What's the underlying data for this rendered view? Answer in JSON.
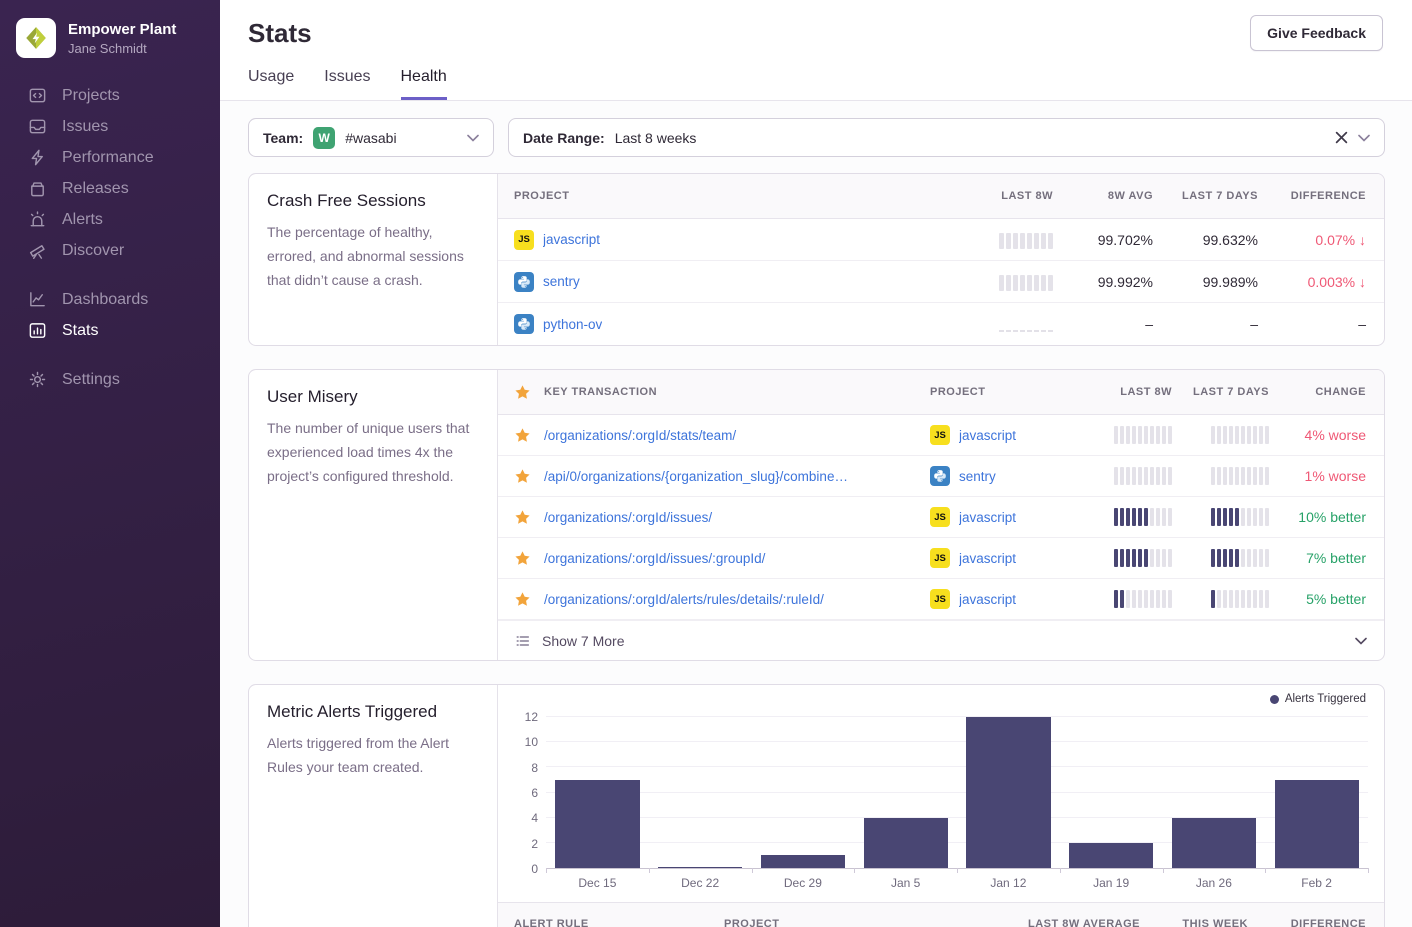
{
  "colors": {
    "accent": "#6C5FC7",
    "link": "#3D74DB",
    "red": "#EF5875",
    "green": "#27A268",
    "bar_dark": "#494673",
    "bar_light": "#E4E2E9",
    "star": "#F2A43B",
    "js_yellow": "#F7DF1E",
    "python_blue": "#3B82C4",
    "team_green": "#3FA372"
  },
  "sidebar": {
    "org_name": "Empower Plant",
    "user_name": "Jane Schmidt",
    "nav_groups": [
      [
        {
          "id": "projects",
          "label": "Projects"
        },
        {
          "id": "issues",
          "label": "Issues"
        },
        {
          "id": "performance",
          "label": "Performance"
        },
        {
          "id": "releases",
          "label": "Releases"
        },
        {
          "id": "alerts",
          "label": "Alerts"
        },
        {
          "id": "discover",
          "label": "Discover"
        }
      ],
      [
        {
          "id": "dashboards",
          "label": "Dashboards"
        },
        {
          "id": "stats",
          "label": "Stats",
          "active": true
        }
      ],
      [
        {
          "id": "settings",
          "label": "Settings"
        }
      ]
    ]
  },
  "header": {
    "title": "Stats",
    "tabs": [
      {
        "label": "Usage"
      },
      {
        "label": "Issues"
      },
      {
        "label": "Health",
        "active": true
      }
    ],
    "feedback_button": "Give Feedback"
  },
  "filters": {
    "team_label": "Team:",
    "team_avatar_letter": "W",
    "team_value": "#wasabi",
    "date_label": "Date Range:",
    "date_value": "Last 8 weeks"
  },
  "crash_free": {
    "title": "Crash Free Sessions",
    "description": "The percentage of healthy, errored, and abnormal sessions that didn’t cause a crash.",
    "columns": [
      "PROJECT",
      "LAST 8W",
      "8W AVG",
      "LAST 7 DAYS",
      "DIFFERENCE"
    ],
    "rows": [
      {
        "project": "javascript",
        "platform": "javascript",
        "spark": {
          "total": 8,
          "dark": 0
        },
        "avg_8w": "99.702%",
        "last_7_days": "99.632%",
        "difference": "0.07%",
        "trend": "down"
      },
      {
        "project": "sentry",
        "platform": "python",
        "spark": {
          "total": 8,
          "dark": 0
        },
        "avg_8w": "99.992%",
        "last_7_days": "99.989%",
        "difference": "0.003%",
        "trend": "down"
      },
      {
        "project": "python-ov",
        "platform": "python",
        "spark": {
          "total": 8,
          "empty": true
        },
        "avg_8w": "–",
        "last_7_days": "–",
        "difference": "–",
        "trend": "none"
      }
    ]
  },
  "user_misery": {
    "title": "User Misery",
    "description": "The number of unique users that experienced load times 4x the project’s configured threshold.",
    "columns": [
      "KEY TRANSACTION",
      "PROJECT",
      "LAST 8W",
      "LAST 7 DAYS",
      "CHANGE"
    ],
    "rows": [
      {
        "transaction": "/organizations/:orgId/stats/team/",
        "project": "javascript",
        "platform": "javascript",
        "bars_8w": {
          "total": 10,
          "dark": 0
        },
        "bars_7d": {
          "total": 10,
          "dark": 0
        },
        "change": "4% worse",
        "sentiment": "bad"
      },
      {
        "transaction": "/api/0/organizations/{organization_slug}/combine…",
        "project": "sentry",
        "platform": "python",
        "bars_8w": {
          "total": 10,
          "dark": 0
        },
        "bars_7d": {
          "total": 10,
          "dark": 0
        },
        "change": "1% worse",
        "sentiment": "bad"
      },
      {
        "transaction": "/organizations/:orgId/issues/",
        "project": "javascript",
        "platform": "javascript",
        "bars_8w": {
          "total": 10,
          "dark": 6
        },
        "bars_7d": {
          "total": 10,
          "dark": 5
        },
        "change": "10% better",
        "sentiment": "good"
      },
      {
        "transaction": "/organizations/:orgId/issues/:groupId/",
        "project": "javascript",
        "platform": "javascript",
        "bars_8w": {
          "total": 10,
          "dark": 6
        },
        "bars_7d": {
          "total": 10,
          "dark": 5
        },
        "change": "7% better",
        "sentiment": "good"
      },
      {
        "transaction": "/organizations/:orgId/alerts/rules/details/:ruleId/",
        "project": "javascript",
        "platform": "javascript",
        "bars_8w": {
          "total": 10,
          "dark": 2
        },
        "bars_7d": {
          "total": 10,
          "dark": 1
        },
        "change": "5% better",
        "sentiment": "good"
      }
    ],
    "show_more": "Show 7 More"
  },
  "metric_alerts": {
    "title": "Metric Alerts Triggered",
    "description": "Alerts triggered from the Alert Rules your team created.",
    "chart_data": {
      "type": "bar",
      "categories": [
        "Dec 15",
        "Dec 22",
        "Dec 29",
        "Jan 5",
        "Jan 12",
        "Jan 19",
        "Jan 26",
        "Feb 2"
      ],
      "values": [
        7,
        0,
        1,
        4,
        12,
        2,
        4,
        7
      ],
      "series_name": "Alerts Triggered",
      "ylim": [
        0,
        12
      ],
      "yticks": [
        0,
        2,
        4,
        6,
        8,
        10,
        12
      ],
      "legend_position": "top-right",
      "grid": true
    },
    "table_columns": [
      "ALERT RULE",
      "PROJECT",
      "LAST 8W AVERAGE",
      "THIS WEEK",
      "DIFFERENCE"
    ]
  }
}
